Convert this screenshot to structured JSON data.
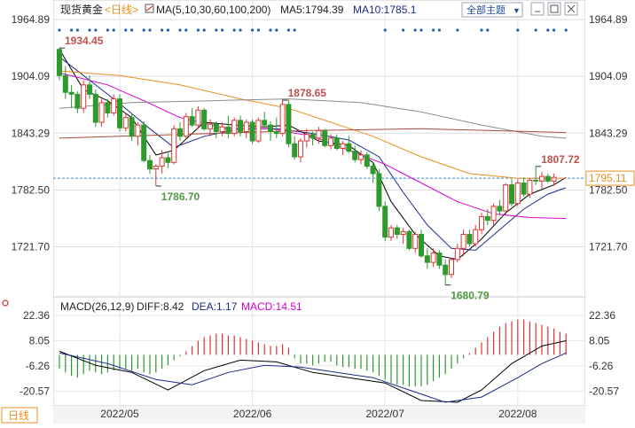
{
  "header": {
    "instrument": "现货黄金",
    "period": "<日线>",
    "ma_label": "MA(5,10,30,60,100,200)",
    "ma5_label": "MA5:1794.39",
    "ma10_label": "MA10:1785.1",
    "topic_button": "全部主题",
    "topic_arrow": "▼"
  },
  "macd_header": {
    "label": "MACD(26,12,9)",
    "diff": "DIFF:8.42",
    "dea": "DEA:1.17",
    "macd": "MACD:14.51"
  },
  "bottom_tab": "日线",
  "colors": {
    "up": "#e03434",
    "down": "#2e9a2e",
    "ma5": "#000000",
    "ma10": "#1b2a8c",
    "ma30": "#d600d6",
    "ma60": "#e8901e",
    "ma100": "#8b8b8b",
    "ma200": "#b04a3a"
  },
  "chart_data": {
    "type": "candlestick",
    "y_ticks": [
      "1964.89",
      "1904.09",
      "1843.29",
      "1782.50",
      "1721.70"
    ],
    "y_range": [
      1670,
      1965
    ],
    "x_labels": [
      "2022/05",
      "2022/06",
      "2022/07",
      "2022/08"
    ],
    "current_price": "1795.11",
    "annotations": [
      {
        "text": "1934.45",
        "value": 1934.45,
        "kind": "high"
      },
      {
        "text": "1878.65",
        "value": 1878.65,
        "kind": "high"
      },
      {
        "text": "1786.70",
        "value": 1786.7,
        "kind": "low"
      },
      {
        "text": "1680.79",
        "value": 1680.79,
        "kind": "low"
      },
      {
        "text": "1807.72",
        "value": 1807.72,
        "kind": "high"
      }
    ],
    "candles": [
      [
        1933,
        1935,
        1900,
        1905
      ],
      [
        1905,
        1915,
        1880,
        1887
      ],
      [
        1887,
        1895,
        1870,
        1885
      ],
      [
        1885,
        1888,
        1865,
        1870
      ],
      [
        1870,
        1900,
        1865,
        1895
      ],
      [
        1895,
        1905,
        1880,
        1885
      ],
      [
        1885,
        1890,
        1850,
        1855
      ],
      [
        1855,
        1880,
        1850,
        1876
      ],
      [
        1876,
        1880,
        1860,
        1865
      ],
      [
        1865,
        1885,
        1862,
        1880
      ],
      [
        1880,
        1885,
        1845,
        1849
      ],
      [
        1849,
        1865,
        1845,
        1860
      ],
      [
        1860,
        1865,
        1835,
        1840
      ],
      [
        1840,
        1855,
        1830,
        1852
      ],
      [
        1852,
        1856,
        1812,
        1814
      ],
      [
        1814,
        1820,
        1800,
        1805
      ],
      [
        1805,
        1810,
        1787,
        1808
      ],
      [
        1808,
        1825,
        1800,
        1817
      ],
      [
        1817,
        1822,
        1806,
        1812
      ],
      [
        1812,
        1852,
        1810,
        1848
      ],
      [
        1848,
        1855,
        1835,
        1840
      ],
      [
        1840,
        1865,
        1838,
        1861
      ],
      [
        1861,
        1870,
        1850,
        1852
      ],
      [
        1852,
        1872,
        1848,
        1868
      ],
      [
        1868,
        1870,
        1846,
        1848
      ],
      [
        1848,
        1858,
        1840,
        1853
      ],
      [
        1853,
        1856,
        1838,
        1845
      ],
      [
        1845,
        1855,
        1840,
        1850
      ],
      [
        1850,
        1862,
        1838,
        1843
      ],
      [
        1843,
        1860,
        1840,
        1857
      ],
      [
        1857,
        1862,
        1840,
        1845
      ],
      [
        1845,
        1858,
        1838,
        1855
      ],
      [
        1855,
        1858,
        1832,
        1835
      ],
      [
        1835,
        1860,
        1833,
        1857
      ],
      [
        1857,
        1866,
        1850,
        1852
      ],
      [
        1852,
        1856,
        1835,
        1845
      ],
      [
        1845,
        1860,
        1838,
        1843
      ],
      [
        1843,
        1880,
        1840,
        1874
      ],
      [
        1874,
        1879,
        1828,
        1832
      ],
      [
        1832,
        1840,
        1815,
        1818
      ],
      [
        1818,
        1838,
        1812,
        1835
      ],
      [
        1835,
        1848,
        1828,
        1842
      ],
      [
        1842,
        1845,
        1830,
        1838
      ],
      [
        1838,
        1850,
        1832,
        1846
      ],
      [
        1846,
        1848,
        1828,
        1830
      ],
      [
        1830,
        1842,
        1826,
        1838
      ],
      [
        1838,
        1842,
        1825,
        1827
      ],
      [
        1827,
        1835,
        1820,
        1832
      ],
      [
        1832,
        1840,
        1822,
        1824
      ],
      [
        1824,
        1830,
        1812,
        1815
      ],
      [
        1815,
        1825,
        1810,
        1820
      ],
      [
        1820,
        1823,
        1805,
        1808
      ],
      [
        1808,
        1812,
        1790,
        1800
      ],
      [
        1800,
        1805,
        1760,
        1765
      ],
      [
        1765,
        1770,
        1728,
        1732
      ],
      [
        1732,
        1745,
        1728,
        1742
      ],
      [
        1742,
        1745,
        1730,
        1735
      ],
      [
        1735,
        1742,
        1725,
        1738
      ],
      [
        1738,
        1740,
        1718,
        1720
      ],
      [
        1720,
        1738,
        1715,
        1735
      ],
      [
        1735,
        1740,
        1710,
        1712
      ],
      [
        1712,
        1720,
        1698,
        1705
      ],
      [
        1705,
        1720,
        1700,
        1715
      ],
      [
        1715,
        1718,
        1698,
        1702
      ],
      [
        1702,
        1708,
        1681,
        1692
      ],
      [
        1692,
        1710,
        1688,
        1708
      ],
      [
        1708,
        1725,
        1705,
        1720
      ],
      [
        1720,
        1740,
        1712,
        1735
      ],
      [
        1735,
        1740,
        1722,
        1725
      ],
      [
        1725,
        1745,
        1722,
        1740
      ],
      [
        1740,
        1758,
        1735,
        1754
      ],
      [
        1754,
        1762,
        1745,
        1750
      ],
      [
        1750,
        1768,
        1745,
        1765
      ],
      [
        1765,
        1772,
        1755,
        1760
      ],
      [
        1760,
        1790,
        1755,
        1788
      ],
      [
        1788,
        1794,
        1765,
        1768
      ],
      [
        1768,
        1794,
        1765,
        1790
      ],
      [
        1790,
        1796,
        1775,
        1778
      ],
      [
        1778,
        1795,
        1774,
        1793
      ],
      [
        1793,
        1808,
        1788,
        1792
      ],
      [
        1792,
        1802,
        1784,
        1797
      ],
      [
        1797,
        1800,
        1790,
        1792
      ],
      [
        1792,
        1800,
        1787,
        1796
      ]
    ],
    "moving_averages": [
      {
        "name": "MA5",
        "points": [
          [
            0,
            1933
          ],
          [
            4,
            1890
          ],
          [
            8,
            1878
          ],
          [
            12,
            1860
          ],
          [
            16,
            1820
          ],
          [
            19,
            1825
          ],
          [
            24,
            1855
          ],
          [
            29,
            1852
          ],
          [
            34,
            1850
          ],
          [
            38,
            1852
          ],
          [
            43,
            1835
          ],
          [
            48,
            1830
          ],
          [
            52,
            1812
          ],
          [
            55,
            1770
          ],
          [
            59,
            1735
          ],
          [
            63,
            1712
          ],
          [
            66,
            1708
          ],
          [
            70,
            1730
          ],
          [
            74,
            1758
          ],
          [
            78,
            1778
          ],
          [
            82,
            1788
          ],
          [
            84,
            1796
          ]
        ]
      },
      {
        "name": "MA10",
        "points": [
          [
            0,
            1925
          ],
          [
            5,
            1900
          ],
          [
            10,
            1875
          ],
          [
            15,
            1848
          ],
          [
            19,
            1828
          ],
          [
            24,
            1840
          ],
          [
            30,
            1848
          ],
          [
            36,
            1848
          ],
          [
            42,
            1843
          ],
          [
            48,
            1836
          ],
          [
            53,
            1818
          ],
          [
            57,
            1780
          ],
          [
            61,
            1745
          ],
          [
            65,
            1720
          ],
          [
            69,
            1718
          ],
          [
            73,
            1740
          ],
          [
            77,
            1762
          ],
          [
            81,
            1778
          ],
          [
            84,
            1785
          ]
        ]
      },
      {
        "name": "MA30",
        "points": [
          [
            0,
            1908
          ],
          [
            8,
            1895
          ],
          [
            14,
            1878
          ],
          [
            20,
            1860
          ],
          [
            28,
            1848
          ],
          [
            35,
            1848
          ],
          [
            42,
            1840
          ],
          [
            48,
            1825
          ],
          [
            54,
            1810
          ],
          [
            60,
            1790
          ],
          [
            66,
            1770
          ],
          [
            72,
            1757
          ],
          [
            78,
            1753
          ],
          [
            84,
            1752
          ]
        ]
      },
      {
        "name": "MA60",
        "points": [
          [
            0,
            1910
          ],
          [
            10,
            1905
          ],
          [
            20,
            1895
          ],
          [
            30,
            1880
          ],
          [
            38,
            1870
          ],
          [
            45,
            1855
          ],
          [
            52,
            1840
          ],
          [
            60,
            1818
          ],
          [
            68,
            1800
          ],
          [
            76,
            1795
          ],
          [
            84,
            1795
          ]
        ]
      },
      {
        "name": "MA100",
        "points": [
          [
            0,
            1870
          ],
          [
            12,
            1876
          ],
          [
            25,
            1878
          ],
          [
            38,
            1880
          ],
          [
            50,
            1876
          ],
          [
            60,
            1866
          ],
          [
            70,
            1852
          ],
          [
            80,
            1840
          ],
          [
            84,
            1838
          ]
        ]
      },
      {
        "name": "MA200",
        "points": [
          [
            0,
            1838
          ],
          [
            20,
            1842
          ],
          [
            40,
            1846
          ],
          [
            60,
            1848
          ],
          [
            84,
            1844
          ]
        ]
      }
    ],
    "macd": {
      "y_ticks": [
        "22.36",
        "8.05",
        "-6.26",
        "-20.57"
      ],
      "range": [
        -29,
        22.36
      ],
      "hist": [
        -8,
        -10,
        -12,
        -13,
        -11,
        -9,
        -10,
        -11,
        -10,
        -9,
        -8,
        -8,
        -9,
        -8,
        -10,
        -11,
        -10,
        -8,
        -6,
        -3,
        -1,
        2,
        5,
        8,
        10,
        11,
        12,
        12,
        11,
        11,
        10,
        9,
        8,
        7,
        6,
        5,
        5,
        6,
        4,
        -2,
        -5,
        -5,
        -6,
        -5,
        -4,
        -4,
        -6,
        -7,
        -7,
        -8,
        -8,
        -9,
        -10,
        -12,
        -14,
        -16,
        -17,
        -17,
        -18,
        -18,
        -18,
        -17,
        -15,
        -13,
        -11,
        -8,
        -5,
        -2,
        1,
        4,
        7,
        10,
        13,
        16,
        18,
        19,
        20,
        20,
        19,
        18,
        17,
        16,
        15,
        13,
        12
      ],
      "diff": [
        [
          0,
          2
        ],
        [
          6,
          -6
        ],
        [
          12,
          -10
        ],
        [
          18,
          -20
        ],
        [
          24,
          -9
        ],
        [
          30,
          -3
        ],
        [
          36,
          -4
        ],
        [
          42,
          -10
        ],
        [
          48,
          -13
        ],
        [
          54,
          -16
        ],
        [
          60,
          -26
        ],
        [
          66,
          -27
        ],
        [
          70,
          -20
        ],
        [
          75,
          -5
        ],
        [
          80,
          5
        ],
        [
          84,
          8
        ]
      ],
      "dea": [
        [
          0,
          1
        ],
        [
          8,
          -5
        ],
        [
          16,
          -14
        ],
        [
          22,
          -17
        ],
        [
          28,
          -10
        ],
        [
          34,
          -6
        ],
        [
          40,
          -7
        ],
        [
          46,
          -10
        ],
        [
          52,
          -13
        ],
        [
          58,
          -20
        ],
        [
          64,
          -27
        ],
        [
          70,
          -24
        ],
        [
          76,
          -13
        ],
        [
          80,
          -5
        ],
        [
          84,
          1
        ]
      ]
    }
  }
}
